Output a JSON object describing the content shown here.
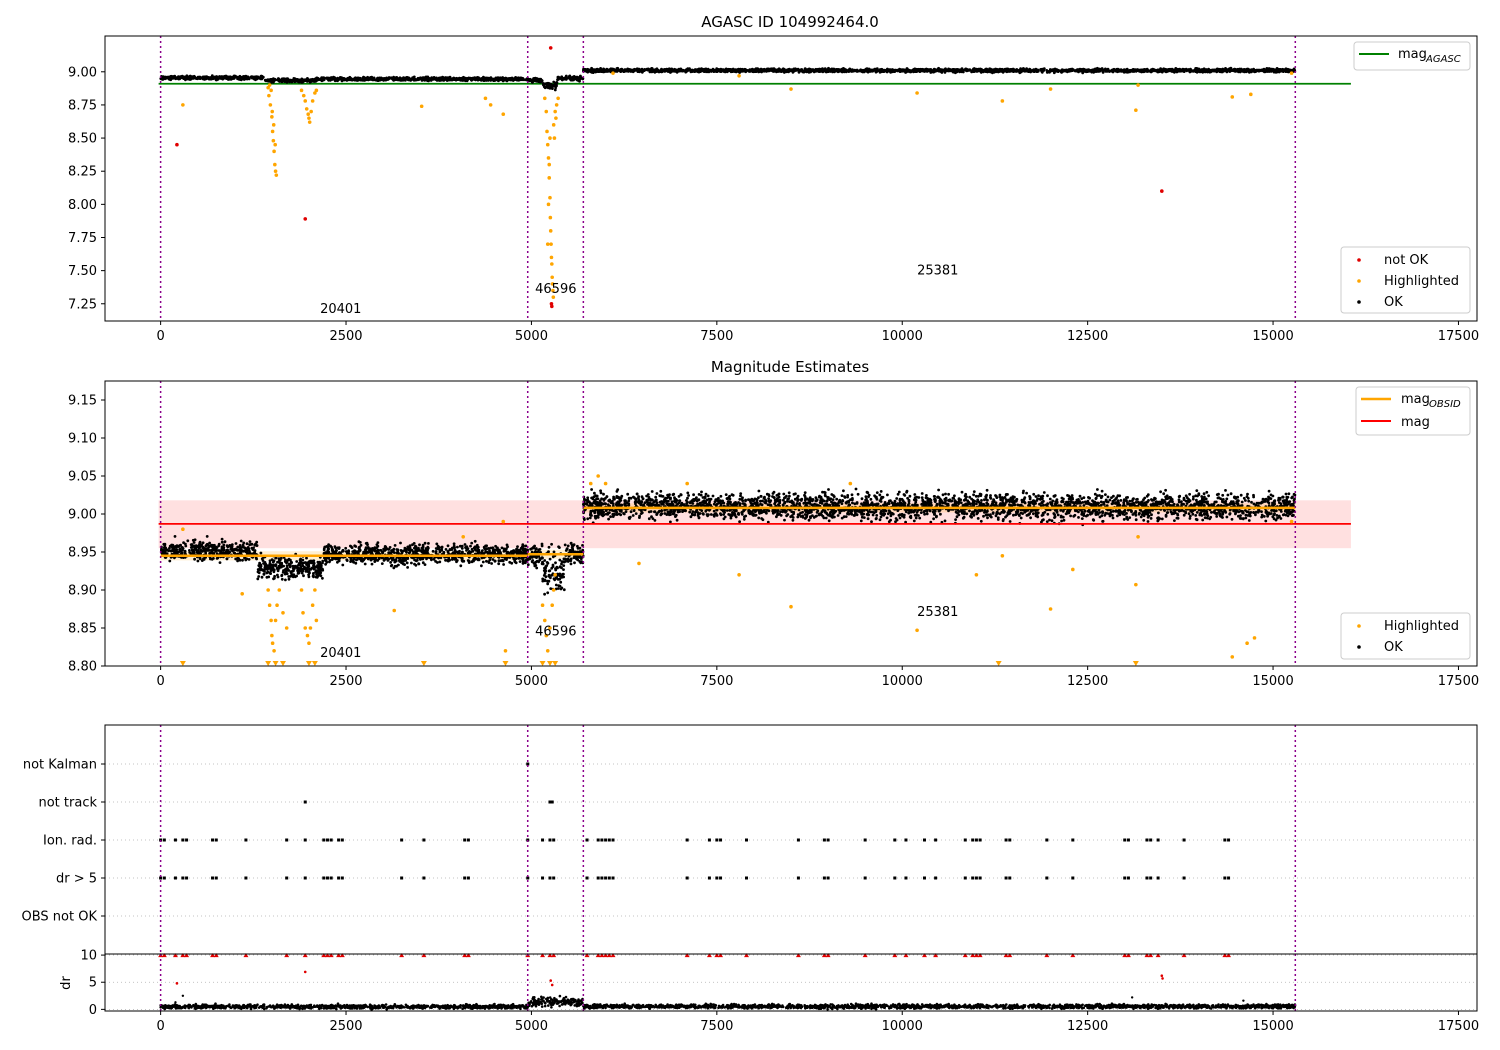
{
  "colors": {
    "ok": "#000000",
    "highlighted": "#ffa500",
    "not_ok": "#e00000",
    "mag_agasc": "#008000",
    "mag_obsid": "#ffa500",
    "mag": "#ff0000",
    "mag_band": "#ffd6d6",
    "segment_line": "#8b008b",
    "flag_grid": "#b0b0b0"
  },
  "x_ticks": [
    "0",
    "2500",
    "5000",
    "7500",
    "10000",
    "12500",
    "15000",
    "17500"
  ],
  "segment_boundaries": [
    0,
    4950,
    5700,
    15300
  ],
  "chart_data": [
    {
      "type": "scatter",
      "title": "AGASC ID 104992464.0",
      "xlabel": "",
      "ylabel": "",
      "xlim": [
        -750,
        17750
      ],
      "ylim": [
        7.12,
        9.27
      ],
      "y_ticks": [
        "7.25",
        "7.50",
        "7.75",
        "8.00",
        "8.25",
        "8.50",
        "8.75",
        "9.00"
      ],
      "legend_top": {
        "placement": "top-right",
        "entries": [
          {
            "label_main": "mag",
            "label_sub": "AGASC"
          }
        ]
      },
      "legend_bottom": {
        "placement": "bottom-right",
        "entries": [
          "not OK",
          "Highlighted",
          "OK"
        ]
      },
      "mag_agasc": 8.91,
      "annotations": [
        {
          "text": "20401",
          "x": 2150,
          "y": 7.18
        },
        {
          "text": "46596",
          "x": 5050,
          "y": 7.33
        },
        {
          "text": "25381",
          "x": 10200,
          "y": 7.47
        }
      ],
      "ok_bands": [
        {
          "x0": 0,
          "x1": 1400,
          "y": 8.955,
          "spread": 0.012
        },
        {
          "x0": 1400,
          "x1": 2100,
          "y": 8.935,
          "spread": 0.012
        },
        {
          "x0": 2100,
          "x1": 4950,
          "y": 8.945,
          "spread": 0.012
        },
        {
          "x0": 4950,
          "x1": 5150,
          "y": 8.935,
          "spread": 0.015
        },
        {
          "x0": 5150,
          "x1": 5350,
          "y": 8.9,
          "spread": 0.03
        },
        {
          "x0": 5350,
          "x1": 5700,
          "y": 8.95,
          "spread": 0.015
        },
        {
          "x0": 5700,
          "x1": 15300,
          "y": 9.01,
          "spread": 0.012
        }
      ],
      "highlighted_points": [
        [
          1450,
          8.88
        ],
        [
          1460,
          8.82
        ],
        [
          1480,
          8.75
        ],
        [
          1500,
          8.66
        ],
        [
          1510,
          8.55
        ],
        [
          1520,
          8.48
        ],
        [
          1530,
          8.4
        ],
        [
          1540,
          8.3
        ],
        [
          1550,
          8.25
        ],
        [
          1560,
          8.22
        ],
        [
          1470,
          8.9
        ],
        [
          1490,
          8.86
        ],
        [
          1505,
          8.7
        ],
        [
          1525,
          8.6
        ],
        [
          1545,
          8.45
        ],
        [
          1900,
          8.86
        ],
        [
          1930,
          8.82
        ],
        [
          1950,
          8.78
        ],
        [
          1970,
          8.72
        ],
        [
          1990,
          8.68
        ],
        [
          2000,
          8.65
        ],
        [
          2010,
          8.62
        ],
        [
          2030,
          8.7
        ],
        [
          2050,
          8.78
        ],
        [
          2080,
          8.84
        ],
        [
          2100,
          8.86
        ],
        [
          300,
          8.75
        ],
        [
          3520,
          8.74
        ],
        [
          4380,
          8.8
        ],
        [
          4450,
          8.75
        ],
        [
          4620,
          8.68
        ],
        [
          5180,
          8.8
        ],
        [
          5200,
          8.7
        ],
        [
          5210,
          8.55
        ],
        [
          5220,
          8.45
        ],
        [
          5230,
          8.35
        ],
        [
          5240,
          8.2
        ],
        [
          5250,
          8.05
        ],
        [
          5255,
          7.9
        ],
        [
          5260,
          7.8
        ],
        [
          5265,
          7.7
        ],
        [
          5270,
          7.6
        ],
        [
          5275,
          7.55
        ],
        [
          5280,
          7.45
        ],
        [
          5285,
          7.4
        ],
        [
          5290,
          7.35
        ],
        [
          5295,
          7.3
        ],
        [
          5300,
          8.6
        ],
        [
          5320,
          8.7
        ],
        [
          5340,
          8.75
        ],
        [
          5360,
          8.8
        ],
        [
          5310,
          8.5
        ],
        [
          5330,
          8.65
        ],
        [
          5250,
          8.5
        ],
        [
          5240,
          8.3
        ],
        [
          5230,
          8.0
        ],
        [
          5220,
          7.7
        ],
        [
          6100,
          8.99
        ],
        [
          7800,
          8.97
        ],
        [
          8500,
          8.87
        ],
        [
          10200,
          8.84
        ],
        [
          11350,
          8.78
        ],
        [
          12000,
          8.87
        ],
        [
          13150,
          8.71
        ],
        [
          13180,
          8.9
        ],
        [
          14450,
          8.81
        ],
        [
          14700,
          8.83
        ],
        [
          15250,
          8.99
        ]
      ],
      "not_ok_points": [
        [
          220,
          8.45
        ],
        [
          1950,
          7.89
        ],
        [
          5260,
          9.18
        ],
        [
          5270,
          7.25
        ],
        [
          5275,
          7.23
        ],
        [
          13500,
          8.1
        ]
      ]
    },
    {
      "type": "scatter",
      "title": "Magnitude Estimates",
      "xlabel": "",
      "ylabel": "",
      "xlim": [
        -750,
        17750
      ],
      "ylim": [
        8.8,
        9.175
      ],
      "y_ticks": [
        "8.80",
        "8.85",
        "8.90",
        "8.95",
        "9.00",
        "9.05",
        "9.10",
        "9.15"
      ],
      "legend_top": {
        "placement": "top-right",
        "entries": [
          {
            "label_main": "mag",
            "label_sub": "OBSID"
          },
          {
            "label_main": "mag",
            "label_sub": ""
          }
        ]
      },
      "legend_bottom": {
        "placement": "bottom-right",
        "entries": [
          "Highlighted",
          "OK"
        ]
      },
      "mag": 8.987,
      "mag_band": [
        8.955,
        9.018
      ],
      "mag_obsid_segments": [
        {
          "x0": 0,
          "x1": 4950,
          "y": 8.945
        },
        {
          "x0": 4950,
          "x1": 5700,
          "y": 8.947
        },
        {
          "x0": 5700,
          "x1": 15300,
          "y": 9.008
        }
      ],
      "annotations": [
        {
          "text": "20401",
          "x": 2150,
          "y": 8.812
        },
        {
          "text": "46596",
          "x": 5050,
          "y": 8.84
        },
        {
          "text": "25381",
          "x": 10200,
          "y": 8.866
        }
      ],
      "ok_bands": [
        {
          "x0": 0,
          "x1": 1300,
          "y": 8.952,
          "spread": 0.012
        },
        {
          "x0": 1300,
          "x1": 2200,
          "y": 8.93,
          "spread": 0.013
        },
        {
          "x0": 2200,
          "x1": 4950,
          "y": 8.947,
          "spread": 0.012
        },
        {
          "x0": 4950,
          "x1": 5150,
          "y": 8.945,
          "spread": 0.013
        },
        {
          "x0": 5150,
          "x1": 5450,
          "y": 8.925,
          "spread": 0.025
        },
        {
          "x0": 5450,
          "x1": 5700,
          "y": 8.948,
          "spread": 0.013
        },
        {
          "x0": 5700,
          "x1": 15300,
          "y": 9.01,
          "spread": 0.016
        }
      ],
      "highlighted_points": [
        [
          1450,
          8.9
        ],
        [
          1470,
          8.88
        ],
        [
          1490,
          8.86
        ],
        [
          1500,
          8.84
        ],
        [
          1510,
          8.83
        ],
        [
          1530,
          8.82
        ],
        [
          1550,
          8.86
        ],
        [
          1570,
          8.88
        ],
        [
          1600,
          8.9
        ],
        [
          1650,
          8.87
        ],
        [
          1700,
          8.85
        ],
        [
          1900,
          8.9
        ],
        [
          1920,
          8.87
        ],
        [
          1950,
          8.85
        ],
        [
          1980,
          8.84
        ],
        [
          2000,
          8.83
        ],
        [
          2020,
          8.85
        ],
        [
          2050,
          8.88
        ],
        [
          2080,
          8.9
        ],
        [
          2100,
          8.86
        ],
        [
          1100,
          8.895
        ],
        [
          300,
          8.98
        ],
        [
          3150,
          8.873
        ],
        [
          4080,
          8.97
        ],
        [
          4620,
          8.99
        ],
        [
          4650,
          8.82
        ],
        [
          5150,
          8.88
        ],
        [
          5180,
          8.86
        ],
        [
          5200,
          8.84
        ],
        [
          5220,
          8.82
        ],
        [
          5250,
          8.85
        ],
        [
          5280,
          8.88
        ],
        [
          5300,
          8.9
        ],
        [
          5320,
          8.92
        ],
        [
          5800,
          9.04
        ],
        [
          5900,
          9.05
        ],
        [
          6000,
          9.04
        ],
        [
          6450,
          8.935
        ],
        [
          7100,
          9.04
        ],
        [
          7800,
          8.92
        ],
        [
          8500,
          8.878
        ],
        [
          9300,
          9.04
        ],
        [
          10200,
          8.847
        ],
        [
          11000,
          8.92
        ],
        [
          11350,
          8.945
        ],
        [
          12000,
          8.875
        ],
        [
          12300,
          8.927
        ],
        [
          13150,
          8.907
        ],
        [
          13180,
          8.97
        ],
        [
          14450,
          8.812
        ],
        [
          14650,
          8.83
        ],
        [
          14750,
          8.837
        ],
        [
          15250,
          8.99
        ]
      ],
      "below_axis_markers": [
        300,
        1450,
        1550,
        1650,
        2000,
        2080,
        3550,
        4650,
        5150,
        5250,
        5320,
        11300,
        13150
      ]
    },
    {
      "type": "scatter",
      "title": "",
      "xlabel": "",
      "ylabel": "",
      "xlim": [
        -750,
        17750
      ],
      "flag_rows": [
        "not Kalman",
        "not track",
        "Ion. rad.",
        "dr > 5",
        "OBS not OK"
      ],
      "flag_points": {
        "not Kalman": [
          4950
        ],
        "not track": [
          1950,
          5250,
          5280
        ],
        "Ion. rad.": [
          0,
          50,
          200,
          300,
          350,
          700,
          750,
          1150,
          1700,
          1950,
          2200,
          2250,
          2300,
          2400,
          2450,
          3250,
          3550,
          4100,
          4150,
          4950,
          5150,
          5250,
          5300,
          5750,
          5900,
          5950,
          6000,
          6050,
          6100,
          7100,
          7400,
          7500,
          7550,
          7900,
          8600,
          8950,
          9000,
          9500,
          9900,
          10050,
          10300,
          10450,
          10850,
          10950,
          11000,
          11050,
          11400,
          11450,
          11950,
          12300,
          13000,
          13050,
          13300,
          13350,
          13450,
          13800,
          14350,
          14400
        ],
        "dr > 5": [
          0,
          50,
          200,
          300,
          350,
          700,
          750,
          1150,
          1700,
          1950,
          2200,
          2250,
          2300,
          2400,
          2450,
          3250,
          3550,
          4100,
          4150,
          4950,
          5150,
          5250,
          5300,
          5750,
          5900,
          5950,
          6000,
          6050,
          6100,
          7100,
          7400,
          7500,
          7550,
          7900,
          8600,
          8950,
          9000,
          9500,
          9900,
          10050,
          10300,
          10450,
          10850,
          10950,
          11000,
          11050,
          11400,
          11450,
          11950,
          12300,
          13000,
          13050,
          13300,
          13350,
          13450,
          13800,
          14350,
          14400
        ],
        "OBS not OK": []
      }
    },
    {
      "type": "scatter",
      "title": "",
      "xlabel": "",
      "ylabel": "dr",
      "xlim": [
        -750,
        17750
      ],
      "ylim": [
        -0.3,
        10.2
      ],
      "y_ticks": [
        "0",
        "5",
        "10"
      ],
      "clipped_marker_value": 10,
      "clipped_points": [
        0,
        50,
        200,
        300,
        350,
        700,
        750,
        1150,
        1700,
        1950,
        2200,
        2250,
        2300,
        2400,
        2450,
        3250,
        3550,
        4100,
        4150,
        4950,
        5150,
        5250,
        5300,
        5750,
        5900,
        5950,
        6000,
        6050,
        6100,
        7100,
        7400,
        7500,
        7550,
        7900,
        8600,
        8950,
        9000,
        9500,
        9900,
        10050,
        10300,
        10450,
        10850,
        10950,
        11000,
        11050,
        11400,
        11450,
        11950,
        12300,
        13000,
        13050,
        13300,
        13350,
        13450,
        13800,
        14350,
        14400
      ],
      "red_points": [
        [
          220,
          4.8
        ],
        [
          1950,
          6.9
        ],
        [
          5260,
          5.3
        ],
        [
          5280,
          4.5
        ],
        [
          13500,
          6.2
        ],
        [
          13510,
          5.7
        ]
      ],
      "ok_bands": [
        {
          "x0": 0,
          "x1": 4950,
          "y": 0.5,
          "spread": 0.35
        },
        {
          "x0": 4950,
          "x1": 5700,
          "y": 1.4,
          "spread": 0.8
        },
        {
          "x0": 5700,
          "x1": 15300,
          "y": 0.55,
          "spread": 0.35
        }
      ],
      "extra_points": [
        [
          300,
          2.5
        ],
        [
          13100,
          2.2
        ],
        [
          14600,
          1.6
        ],
        [
          200,
          1.3
        ]
      ]
    }
  ]
}
